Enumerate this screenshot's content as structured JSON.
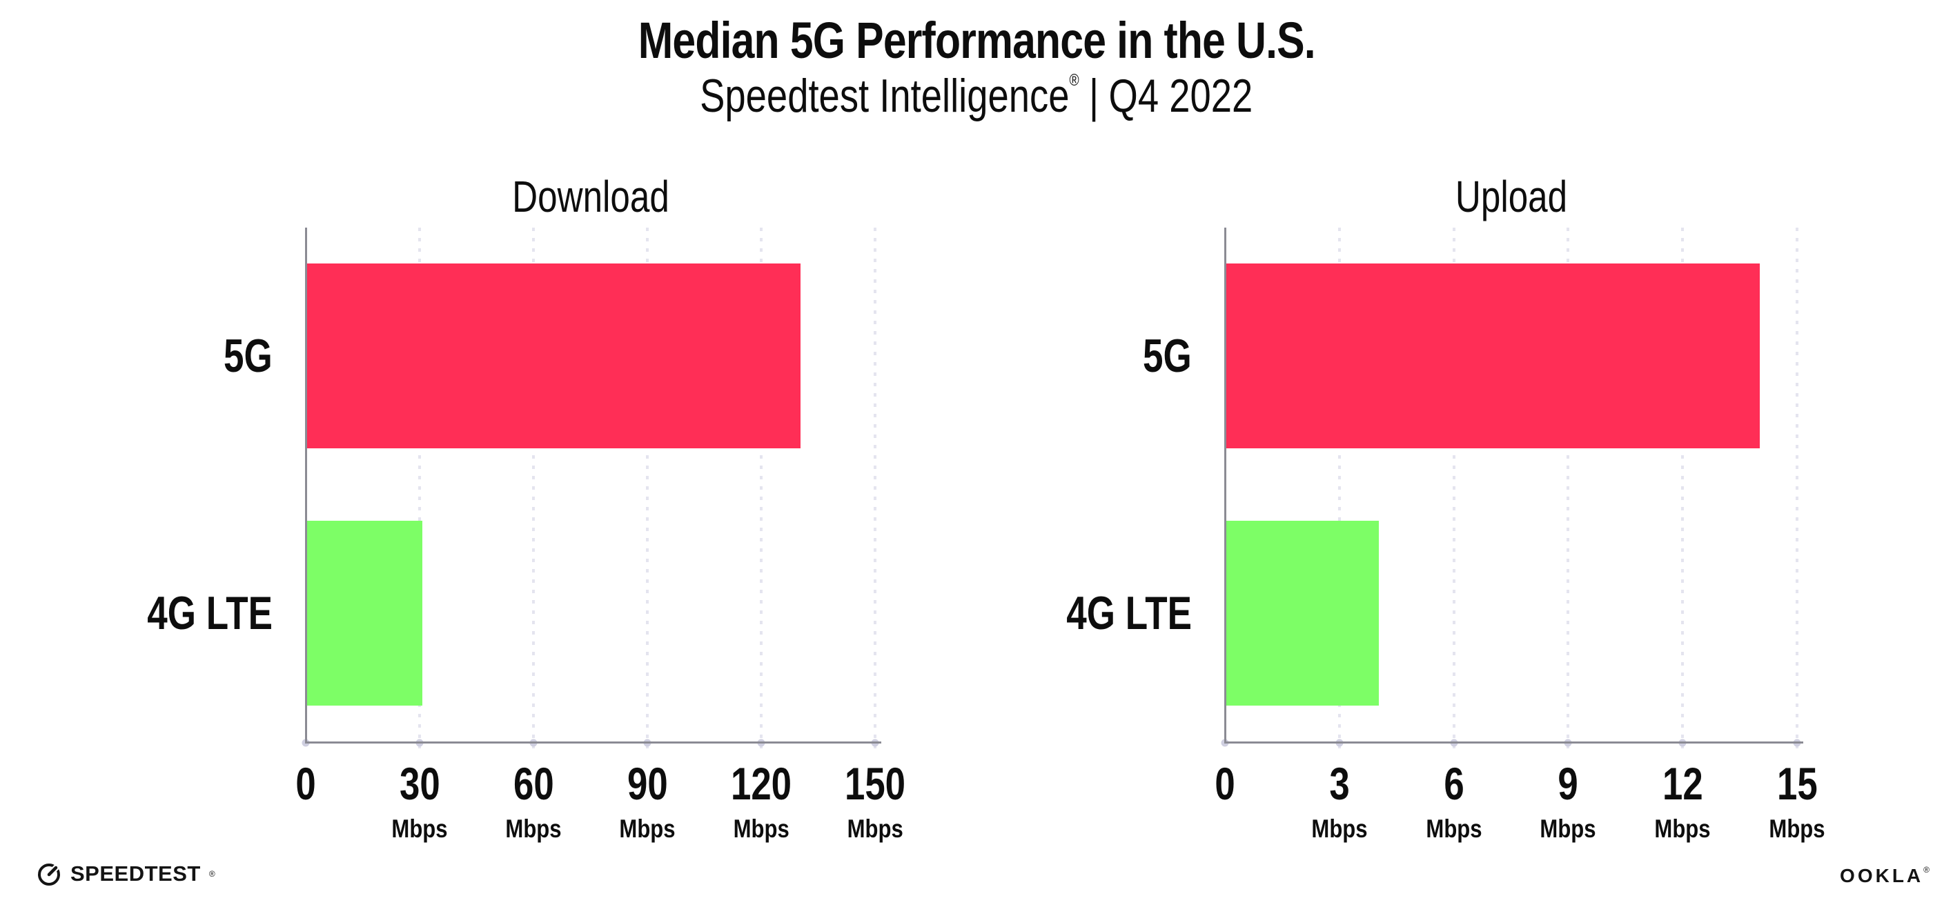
{
  "page": {
    "background": "#ffffff",
    "text_color": "#0d0d0d"
  },
  "header": {
    "title": "Median 5G Performance in the U.S.",
    "subtitle_brand": "Speedtest Intelligence",
    "subtitle_reg": "®",
    "subtitle_pipe": "|",
    "subtitle_period": "Q4 2022"
  },
  "colors": {
    "bar_5g": "#FF2E56",
    "bar_4g_lte": "#7DFE66",
    "gridline": "#E4E4EF",
    "axis_line": "#8B8B94",
    "tick_dot": "#CFCFE0"
  },
  "chart_data": [
    {
      "type": "bar",
      "orientation": "horizontal",
      "title": "Download",
      "categories": [
        "5G",
        "4G LTE"
      ],
      "values": [
        130,
        30.5
      ],
      "unit": "Mbps",
      "xlim": [
        0,
        150
      ],
      "xticks": [
        0,
        30,
        60,
        90,
        120,
        150
      ],
      "xtick_labels": [
        "0",
        "30",
        "60",
        "90",
        "120",
        "150"
      ],
      "xtick_units": [
        "",
        "Mbps",
        "Mbps",
        "Mbps",
        "Mbps",
        "Mbps"
      ],
      "series_colors": [
        "#FF2E56",
        "#7DFE66"
      ],
      "grid": "vertical-dotted",
      "legend": "none"
    },
    {
      "type": "bar",
      "orientation": "horizontal",
      "title": "Upload",
      "categories": [
        "5G",
        "4G LTE"
      ],
      "values": [
        14,
        4
      ],
      "unit": "Mbps",
      "xlim": [
        0,
        15
      ],
      "xticks": [
        0,
        3,
        6,
        9,
        12,
        15
      ],
      "xtick_labels": [
        "0",
        "3",
        "6",
        "9",
        "12",
        "15"
      ],
      "xtick_units": [
        "",
        "Mbps",
        "Mbps",
        "Mbps",
        "Mbps",
        "Mbps"
      ],
      "series_colors": [
        "#FF2E56",
        "#7DFE66"
      ],
      "grid": "vertical-dotted",
      "legend": "none"
    }
  ],
  "footer": {
    "speedtest_logo_text": "SPEEDTEST",
    "speedtest_reg": "®",
    "ookla_logo_text": "OOKLA",
    "ookla_reg": "®"
  }
}
